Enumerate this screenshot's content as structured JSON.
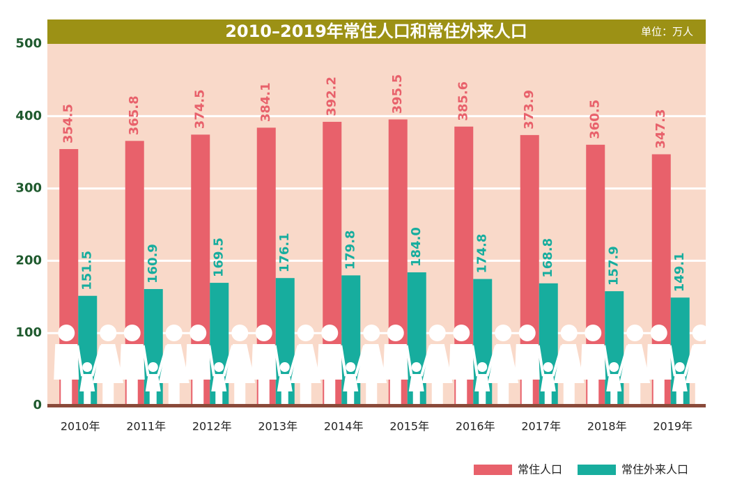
{
  "chart_data": {
    "type": "bar",
    "title": "2010–2019年常住人口和常住外来人口",
    "unit": "单位：万人",
    "categories": [
      "2010年",
      "2011年",
      "2012年",
      "2013年",
      "2014年",
      "2015年",
      "2016年",
      "2017年",
      "2018年",
      "2019年"
    ],
    "series": [
      {
        "name": "常住人口",
        "color": "#e8616b",
        "values": [
          354.5,
          365.8,
          374.5,
          384.1,
          392.2,
          395.5,
          385.6,
          373.9,
          360.5,
          347.3
        ],
        "value_labels": [
          "354.5",
          "365.8",
          "374.5",
          "384.1",
          "392.2",
          "395.5",
          "385.6",
          "373.9",
          "360.5",
          "347.3"
        ]
      },
      {
        "name": "常住外来人口",
        "color": "#17ad9e",
        "values": [
          151.5,
          160.9,
          169.5,
          176.1,
          179.8,
          184.0,
          174.8,
          168.8,
          157.9,
          149.1
        ],
        "value_labels": [
          "151.5",
          "160.9",
          "169.5",
          "176.1",
          "179.8",
          "184.0",
          "174.8",
          "168.8",
          "157.9",
          "149.1"
        ]
      }
    ],
    "ylim": [
      0,
      500
    ],
    "yticks": [
      0,
      100,
      200,
      300,
      400,
      500
    ],
    "grid": true,
    "legend": "bottom-right"
  }
}
